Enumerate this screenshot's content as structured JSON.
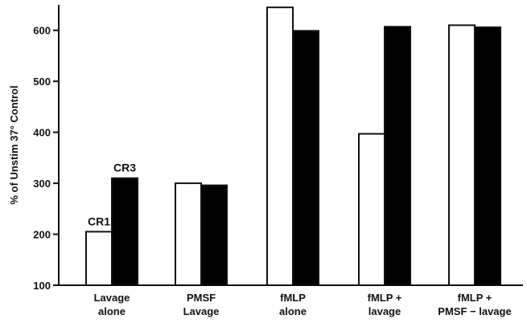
{
  "chart_data": {
    "type": "bar",
    "title": "",
    "xlabel": "",
    "ylabel": "% of Unstim 37° Control",
    "ylim": [
      100,
      650
    ],
    "yticks": [
      100,
      200,
      300,
      400,
      500,
      600
    ],
    "grid": false,
    "legend": "none",
    "categories": [
      [
        "Lavage",
        "alone"
      ],
      [
        "PMSF",
        "Lavage"
      ],
      [
        "fMLP",
        "alone"
      ],
      [
        "fMLP +",
        "lavage"
      ],
      [
        "fMLP +",
        "PMSF − lavage"
      ]
    ],
    "series": [
      {
        "name": "CR1",
        "fill": "#ffffff",
        "values": [
          205,
          300,
          645,
          397,
          610
        ]
      },
      {
        "name": "CR3",
        "fill": "#000000",
        "values": [
          310,
          296,
          599,
          607,
          606
        ]
      }
    ],
    "annotations": [
      {
        "text": "CR1",
        "series": 0,
        "category": 0
      },
      {
        "text": "CR3",
        "series": 1,
        "category": 0
      }
    ]
  }
}
